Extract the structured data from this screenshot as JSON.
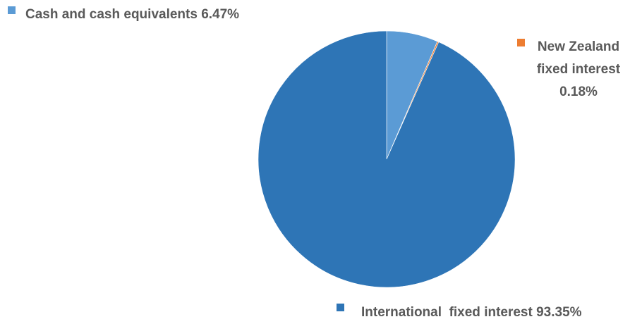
{
  "chart_data": {
    "type": "pie",
    "slices": [
      {
        "label": "Cash and cash equivalents",
        "value": 6.47,
        "value_label": "6.47%",
        "color": "#5b9bd5",
        "label_lines": [
          "Cash and cash equivalents 6.47%"
        ]
      },
      {
        "label": "New Zealand fixed interest",
        "value": 0.18,
        "value_label": "0.18%",
        "color": "#ed7d31",
        "label_lines": [
          "New Zealand",
          "fixed interest",
          "0.18%"
        ]
      },
      {
        "label": "International fixed interest",
        "value": 93.35,
        "value_label": "93.35%",
        "color": "#2e75b6",
        "label_lines": [
          "International  fixed interest 93.35%"
        ]
      }
    ],
    "start_angle": "12 o'clock",
    "direction": "clockwise",
    "legend": "none"
  }
}
